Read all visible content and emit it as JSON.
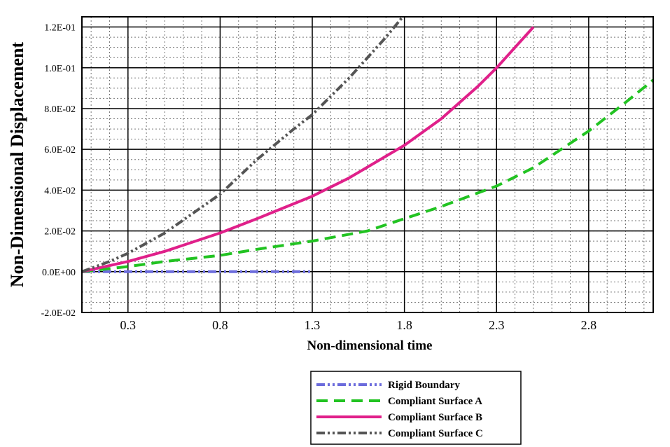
{
  "chart_data": {
    "type": "line",
    "title": "",
    "xlabel": "Non-dimensional time",
    "ylabel": "Non-Dimensional Displacement",
    "xlim": [
      0.05,
      3.15
    ],
    "ylim": [
      -0.02,
      0.125
    ],
    "x_ticks": [
      0.3,
      0.8,
      1.3,
      1.8,
      2.3,
      2.8
    ],
    "x_tick_labels": [
      "0.3",
      "0.8",
      "1.3",
      "1.8",
      "2.3",
      "2.8"
    ],
    "y_ticks": [
      -0.02,
      0.0,
      0.02,
      0.04,
      0.06,
      0.08,
      0.1,
      0.12
    ],
    "y_tick_labels": [
      "-2.0E-02",
      "0.0E+00",
      "2.0E-02",
      "4.0E-02",
      "6.0E-02",
      "8.0E-02",
      "1.0E-01",
      "1.2E-01"
    ],
    "grid": true,
    "legend_position": "bottom-center",
    "series": [
      {
        "name": "Rigid Boundary",
        "color": "#6b6bdc",
        "style": "dash-dot-dot",
        "x": [
          0.05,
          0.2,
          0.4,
          0.6,
          0.8,
          1.0,
          1.2,
          1.3
        ],
        "y": [
          0.0,
          0.0,
          0.0,
          0.0,
          0.0,
          0.0,
          0.0,
          0.0
        ]
      },
      {
        "name": "Compliant Surface A",
        "color": "#22c322",
        "style": "dashed",
        "x": [
          0.05,
          0.2,
          0.3,
          0.5,
          0.8,
          1.0,
          1.3,
          1.6,
          1.8,
          2.0,
          2.3,
          2.5,
          2.8,
          3.0,
          3.15
        ],
        "y": [
          0.0,
          0.0015,
          0.0025,
          0.005,
          0.008,
          0.011,
          0.015,
          0.02,
          0.026,
          0.032,
          0.042,
          0.051,
          0.069,
          0.083,
          0.094
        ]
      },
      {
        "name": "Compliant Surface B",
        "color": "#e0208a",
        "style": "solid",
        "x": [
          0.05,
          0.2,
          0.3,
          0.5,
          0.8,
          1.0,
          1.3,
          1.5,
          1.8,
          2.0,
          2.2,
          2.3,
          2.4,
          2.5
        ],
        "y": [
          0.0,
          0.003,
          0.005,
          0.01,
          0.019,
          0.026,
          0.037,
          0.046,
          0.062,
          0.075,
          0.091,
          0.1,
          0.11,
          0.12
        ]
      },
      {
        "name": "Compliant Surface C",
        "color": "#555555",
        "style": "dash-dot-dot",
        "x": [
          0.05,
          0.2,
          0.3,
          0.5,
          0.8,
          1.0,
          1.2,
          1.3,
          1.5,
          1.7,
          1.8
        ],
        "y": [
          0.0,
          0.005,
          0.009,
          0.019,
          0.038,
          0.055,
          0.07,
          0.077,
          0.095,
          0.115,
          0.126
        ]
      }
    ]
  }
}
